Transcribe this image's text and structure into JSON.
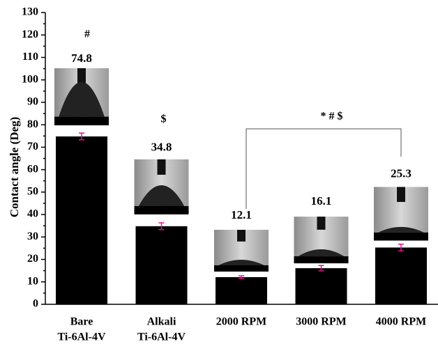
{
  "chart_data": {
    "type": "bar",
    "y_label": "Contact angle (Deg)",
    "categories": [
      [
        "Bare",
        "Ti-6Al-4V"
      ],
      [
        "Alkali",
        "Ti-6Al-4V"
      ],
      [
        "2000 RPM"
      ],
      [
        "3000 RPM"
      ],
      [
        "4000 RPM"
      ]
    ],
    "values": [
      74.8,
      34.8,
      12.1,
      16.1,
      25.3
    ],
    "errors": [
      1.5,
      1.5,
      0.6,
      1.2,
      1.5
    ],
    "color": "#000000",
    "error_color": "#e0148c",
    "ylim": [
      0,
      130
    ],
    "yticks": [
      0,
      10,
      20,
      30,
      40,
      50,
      60,
      70,
      80,
      90,
      100,
      110,
      120,
      130
    ],
    "annotations": [
      "#",
      "$",
      "* # $"
    ]
  }
}
